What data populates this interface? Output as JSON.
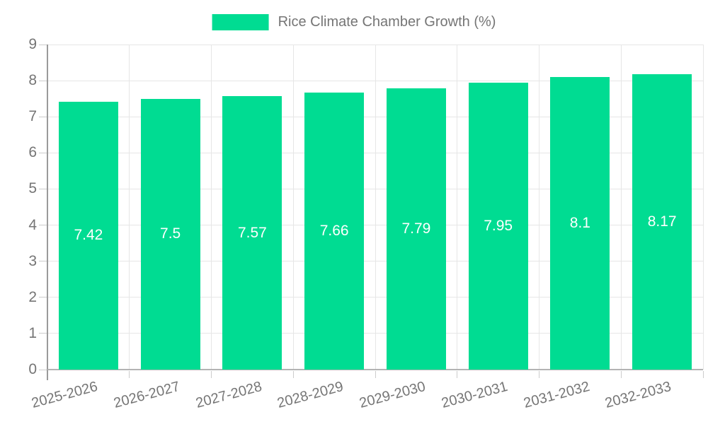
{
  "chart_data": {
    "type": "bar",
    "title": "Rice Climate Chamber Growth (%)",
    "categories": [
      "2025-2026",
      "2026-2027",
      "2027-2028",
      "2028-2029",
      "2029-2030",
      "2030-2031",
      "2031-2032",
      "2032-2033"
    ],
    "values": [
      7.42,
      7.5,
      7.57,
      7.66,
      7.79,
      7.95,
      8.1,
      8.17
    ],
    "value_labels": [
      "7.42",
      "7.5",
      "7.57",
      "7.66",
      "7.79",
      "7.95",
      "8.1",
      "8.17"
    ],
    "xlabel": "",
    "ylabel": "",
    "ylim": [
      0,
      9
    ],
    "yticks": [
      "0",
      "1",
      "2",
      "3",
      "4",
      "5",
      "6",
      "7",
      "8",
      "9"
    ],
    "grid": true,
    "legend_position": "top",
    "series_name": "Rice Climate Chamber Growth (%)"
  },
  "legend": {
    "label": "Rice Climate Chamber Growth (%)"
  },
  "colors": {
    "bar": "#00DC92",
    "text": "#757575",
    "value_label": "#ffffff",
    "gridline": "#e6e6e6",
    "tick": "#cccccc",
    "y_axis_line": "#9a9a9a",
    "x_axis_line": "#b3b3b3",
    "background": "#ffffff"
  }
}
